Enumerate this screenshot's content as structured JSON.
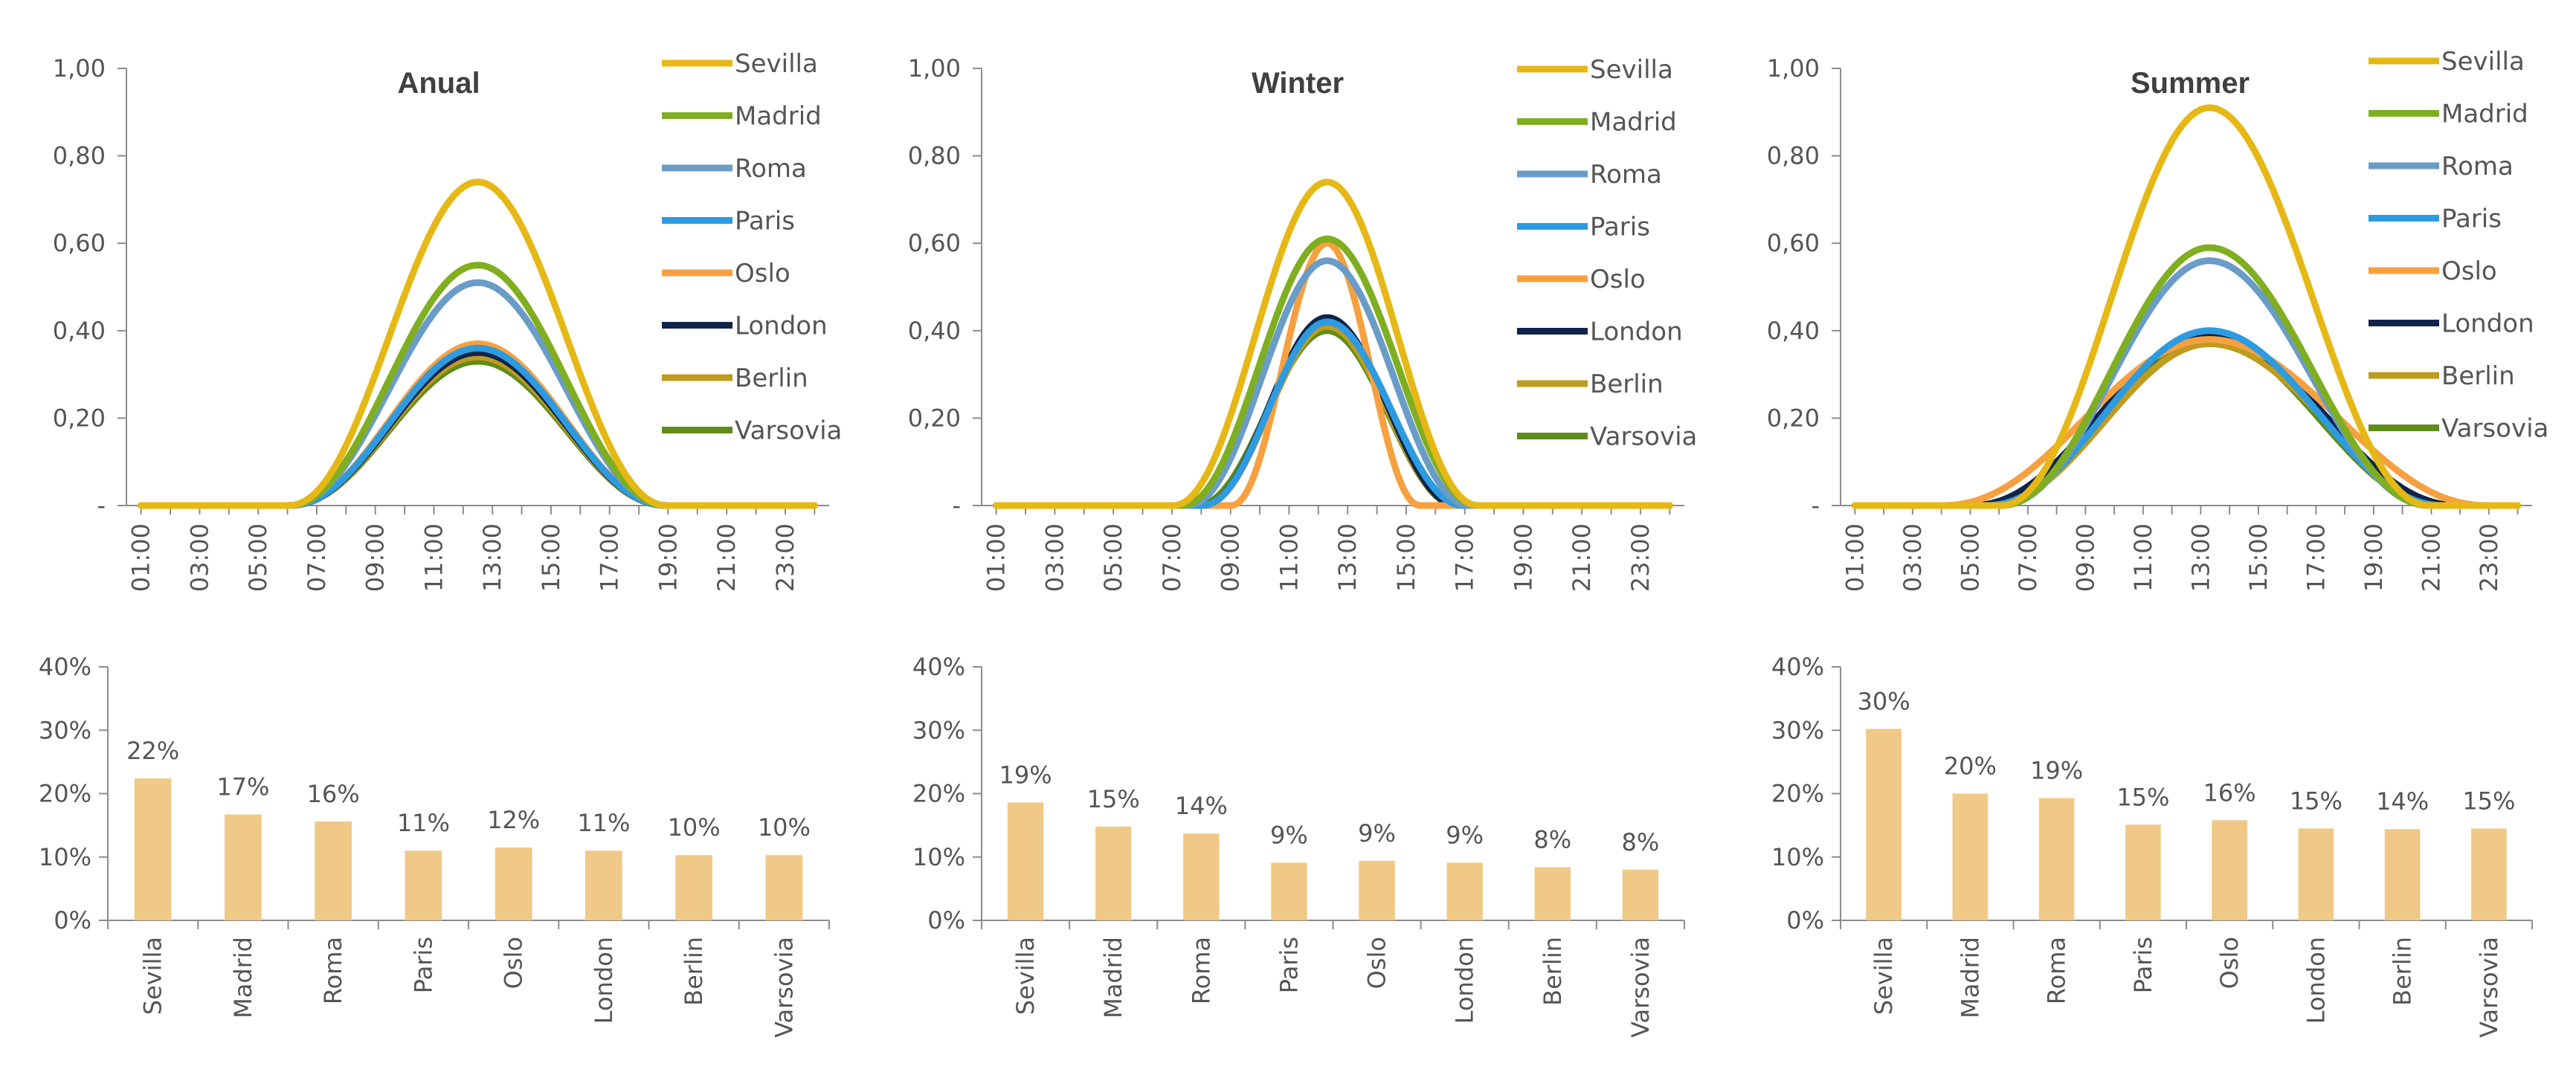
{
  "chart_data": [
    {
      "type": "line",
      "title": "Anual",
      "y_tick_labels": [
        "-",
        "0,20",
        "0,40",
        "0,60",
        "0,80",
        "1,00"
      ],
      "ylim": [
        0,
        1
      ],
      "x_tick_labels": [
        "01:00",
        "03:00",
        "05:00",
        "07:00",
        "09:00",
        "11:00",
        "13:00",
        "15:00",
        "17:00",
        "19:00",
        "21:00",
        "23:00"
      ],
      "x_hours": [
        1,
        3,
        5,
        7,
        9,
        11,
        13,
        15,
        17,
        19,
        21,
        23
      ],
      "xlim": [
        0.5,
        24.5
      ],
      "series": [
        {
          "name": "Sevilla",
          "color": "#E6B816",
          "peak": 0.74,
          "peak_hour": 12.5,
          "start": 6,
          "end": 19
        },
        {
          "name": "Madrid",
          "color": "#7FAF20",
          "peak": 0.55,
          "peak_hour": 12.5,
          "start": 6,
          "end": 19
        },
        {
          "name": "Roma",
          "color": "#6A9CC8",
          "peak": 0.51,
          "peak_hour": 12.5,
          "start": 6,
          "end": 19
        },
        {
          "name": "Paris",
          "color": "#2E9BE0",
          "peak": 0.36,
          "peak_hour": 12.5,
          "start": 6,
          "end": 19
        },
        {
          "name": "Oslo",
          "color": "#F7A040",
          "peak": 0.37,
          "peak_hour": 12.5,
          "start": 6,
          "end": 19
        },
        {
          "name": "London",
          "color": "#10244A",
          "peak": 0.35,
          "peak_hour": 12.5,
          "start": 6,
          "end": 19
        },
        {
          "name": "Berlin",
          "color": "#BF9B1F",
          "peak": 0.34,
          "peak_hour": 12.5,
          "start": 6,
          "end": 19
        },
        {
          "name": "Varsovia",
          "color": "#5E8C18",
          "peak": 0.33,
          "peak_hour": 12.5,
          "start": 6,
          "end": 19
        }
      ]
    },
    {
      "type": "line",
      "title": "Winter",
      "y_tick_labels": [
        "-",
        "0,20",
        "0,40",
        "0,60",
        "0,80",
        "1,00"
      ],
      "ylim": [
        0,
        1
      ],
      "x_tick_labels": [
        "01:00",
        "03:00",
        "05:00",
        "07:00",
        "09:00",
        "11:00",
        "13:00",
        "15:00",
        "17:00",
        "19:00",
        "21:00",
        "23:00"
      ],
      "x_hours": [
        1,
        3,
        5,
        7,
        9,
        11,
        13,
        15,
        17,
        19,
        21,
        23
      ],
      "xlim": [
        0.5,
        24.5
      ],
      "series": [
        {
          "name": "Sevilla",
          "color": "#E6B816",
          "peak": 0.74,
          "peak_hour": 12.3,
          "start": 7,
          "end": 17.5
        },
        {
          "name": "Madrid",
          "color": "#7FAF20",
          "peak": 0.61,
          "peak_hour": 12.3,
          "start": 7.3,
          "end": 17.5
        },
        {
          "name": "Roma",
          "color": "#6A9CC8",
          "peak": 0.56,
          "peak_hour": 12.3,
          "start": 7.5,
          "end": 17.2
        },
        {
          "name": "Paris",
          "color": "#2E9BE0",
          "peak": 0.42,
          "peak_hour": 12.3,
          "start": 8,
          "end": 17
        },
        {
          "name": "Oslo",
          "color": "#F7A040",
          "peak": 0.6,
          "peak_hour": 12.3,
          "start": 9,
          "end": 15.5
        },
        {
          "name": "London",
          "color": "#10244A",
          "peak": 0.43,
          "peak_hour": 12.3,
          "start": 8,
          "end": 16.8
        },
        {
          "name": "Berlin",
          "color": "#BF9B1F",
          "peak": 0.41,
          "peak_hour": 12.3,
          "start": 8,
          "end": 16.8
        },
        {
          "name": "Varsovia",
          "color": "#5E8C18",
          "peak": 0.4,
          "peak_hour": 12.3,
          "start": 7.8,
          "end": 16.8
        }
      ]
    },
    {
      "type": "line",
      "title": "Summer",
      "y_tick_labels": [
        "-",
        "0,20",
        "0,40",
        "0,60",
        "0,80",
        "1,00"
      ],
      "ylim": [
        0,
        1
      ],
      "x_tick_labels": [
        "01:00",
        "03:00",
        "05:00",
        "07:00",
        "09:00",
        "11:00",
        "13:00",
        "15:00",
        "17:00",
        "19:00",
        "21:00",
        "23:00"
      ],
      "x_hours": [
        1,
        3,
        5,
        7,
        9,
        11,
        13,
        15,
        17,
        19,
        21,
        23
      ],
      "xlim": [
        0.5,
        24.5
      ],
      "series": [
        {
          "name": "Sevilla",
          "color": "#E6B816",
          "peak": 0.91,
          "peak_hour": 13.3,
          "start": 6,
          "end": 21
        },
        {
          "name": "Madrid",
          "color": "#7FAF20",
          "peak": 0.59,
          "peak_hour": 13.3,
          "start": 6,
          "end": 21
        },
        {
          "name": "Roma",
          "color": "#6A9CC8",
          "peak": 0.56,
          "peak_hour": 13.3,
          "start": 6,
          "end": 21
        },
        {
          "name": "Paris",
          "color": "#2E9BE0",
          "peak": 0.4,
          "peak_hour": 13.3,
          "start": 5.5,
          "end": 21.5
        },
        {
          "name": "Oslo",
          "color": "#F7A040",
          "peak": 0.38,
          "peak_hour": 13.3,
          "start": 4,
          "end": 23
        },
        {
          "name": "London",
          "color": "#10244A",
          "peak": 0.39,
          "peak_hour": 13.3,
          "start": 5,
          "end": 22
        },
        {
          "name": "Berlin",
          "color": "#BF9B1F",
          "peak": 0.37,
          "peak_hour": 13.3,
          "start": 5.5,
          "end": 22
        },
        {
          "name": "Varsovia",
          "color": "#5E8C18",
          "peak": 0.38,
          "peak_hour": 13.3,
          "start": 5.5,
          "end": 21.5
        }
      ]
    },
    {
      "type": "bar",
      "panel": "Anual",
      "categories": [
        "Sevilla",
        "Madrid",
        "Roma",
        "Paris",
        "Oslo",
        "London",
        "Berlin",
        "Varsovia"
      ],
      "values": [
        22.4,
        16.7,
        15.6,
        11.0,
        11.5,
        11.0,
        10.3,
        10.3
      ],
      "labels": [
        "22%",
        "17%",
        "16%",
        "11%",
        "12%",
        "11%",
        "10%",
        "10%"
      ],
      "y_tick_labels": [
        "0%",
        "10%",
        "20%",
        "30%",
        "40%"
      ],
      "ylim": [
        0,
        40
      ],
      "color": "#F0C987"
    },
    {
      "type": "bar",
      "panel": "Winter",
      "categories": [
        "Sevilla",
        "Madrid",
        "Roma",
        "Paris",
        "Oslo",
        "London",
        "Berlin",
        "Varsovia"
      ],
      "values": [
        18.6,
        14.8,
        13.7,
        9.1,
        9.4,
        9.1,
        8.4,
        8.0
      ],
      "labels": [
        "19%",
        "15%",
        "14%",
        "9%",
        "9%",
        "9%",
        "8%",
        "8%"
      ],
      "y_tick_labels": [
        "0%",
        "10%",
        "20%",
        "30%",
        "40%"
      ],
      "ylim": [
        0,
        40
      ],
      "color": "#F0C987"
    },
    {
      "type": "bar",
      "panel": "Summer",
      "categories": [
        "Sevilla",
        "Madrid",
        "Roma",
        "Paris",
        "Oslo",
        "London",
        "Berlin",
        "Varsovia"
      ],
      "values": [
        30.2,
        20.0,
        19.3,
        15.1,
        15.8,
        14.5,
        14.4,
        14.5
      ],
      "labels": [
        "30%",
        "20%",
        "19%",
        "15%",
        "16%",
        "15%",
        "14%",
        "15%"
      ],
      "y_tick_labels": [
        "0%",
        "10%",
        "20%",
        "30%",
        "40%"
      ],
      "ylim": [
        0,
        40
      ],
      "color": "#F0C987"
    }
  ]
}
